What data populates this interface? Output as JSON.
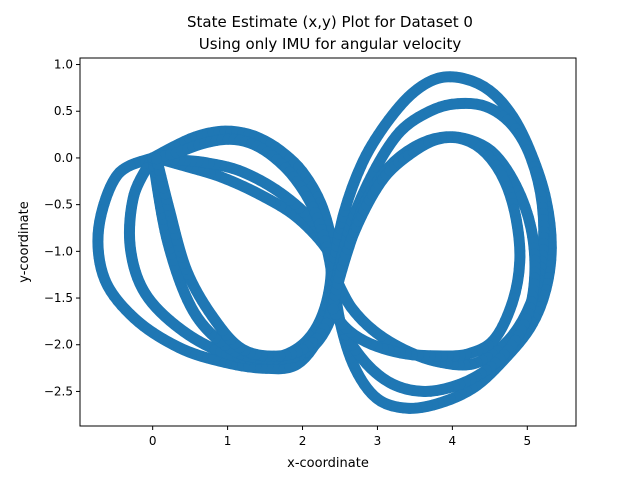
{
  "chart_data": {
    "type": "scatter",
    "title": "State Estimate (x,y) Plot for Dataset 0",
    "subtitle": "Using only IMU for angular velocity",
    "xlabel": "x-coordinate",
    "ylabel": "y-coordinate",
    "xlim": [
      -0.97,
      5.65
    ],
    "ylim": [
      -2.87,
      1.07
    ],
    "xticks": [
      0,
      1,
      2,
      3,
      4,
      5
    ],
    "yticks": [
      1.0,
      0.5,
      0.0,
      -0.5,
      -1.0,
      -1.5,
      -2.0,
      -2.5
    ],
    "xtick_labels": [
      "0",
      "1",
      "2",
      "3",
      "4",
      "5"
    ],
    "ytick_labels": [
      "1.0",
      "0.5",
      "0.0",
      "−0.5",
      "−1.0",
      "−1.5",
      "−2.0",
      "−2.5"
    ],
    "grid": false,
    "color": "#1f77b4",
    "series": [
      {
        "loops": [
          {
            "x": [
              0.0,
              -0.47,
              -0.72,
              -0.64,
              -0.24,
              0.35,
              0.92,
              1.45,
              1.9,
              2.2,
              2.38,
              2.42,
              2.3,
              1.9,
              1.4,
              0.9,
              0.4,
              0.05
            ],
            "y": [
              0.0,
              -0.18,
              -0.75,
              -1.3,
              -1.72,
              -2.03,
              -2.18,
              -2.25,
              -2.22,
              -1.95,
              -1.55,
              -1.2,
              -0.95,
              -0.62,
              -0.38,
              -0.2,
              -0.08,
              0.0
            ]
          },
          {
            "x": [
              0.0,
              -0.25,
              -0.3,
              -0.1,
              0.4,
              1.0,
              1.55,
              2.0,
              2.28,
              2.38,
              2.2,
              1.75,
              1.2,
              0.7,
              0.3,
              0.05
            ],
            "y": [
              0.0,
              -0.4,
              -0.95,
              -1.45,
              -1.85,
              -2.1,
              -2.15,
              -2.0,
              -1.65,
              -1.15,
              -0.75,
              -0.4,
              -0.15,
              -0.05,
              -0.02,
              0.0
            ]
          },
          {
            "x": [
              0.0,
              0.28,
              0.55,
              0.85,
              1.12,
              1.4,
              1.7,
              2.0,
              2.25,
              2.4,
              2.45,
              2.3,
              2.0,
              1.55,
              1.05,
              0.55,
              0.2,
              0.0
            ],
            "y": [
              0.0,
              0.12,
              0.22,
              0.28,
              0.28,
              0.22,
              0.08,
              -0.15,
              -0.5,
              -0.95,
              -1.45,
              -1.85,
              -2.1,
              -2.15,
              -2.05,
              -1.65,
              -0.9,
              0.0
            ]
          },
          {
            "x": [
              0.0,
              0.3,
              0.65,
              1.0,
              1.3,
              1.6,
              1.9,
              2.15,
              2.32,
              2.4,
              2.35,
              2.1,
              1.7,
              1.2,
              0.8,
              0.45,
              0.22,
              0.05
            ],
            "y": [
              0.0,
              0.05,
              0.15,
              0.2,
              0.16,
              0.02,
              -0.22,
              -0.55,
              -0.95,
              -1.35,
              -1.72,
              -2.0,
              -2.12,
              -2.05,
              -1.7,
              -1.2,
              -0.55,
              0.0
            ]
          },
          {
            "x": [
              2.4,
              2.55,
              2.8,
              3.1,
              3.45,
              3.8,
              4.15,
              4.5,
              4.8,
              5.05,
              5.25,
              5.32,
              5.25,
              5.05,
              4.7,
              4.3,
              3.85,
              3.4,
              3.0,
              2.7,
              2.5,
              2.4
            ],
            "y": [
              -1.2,
              -0.6,
              -0.05,
              0.35,
              0.68,
              0.85,
              0.85,
              0.72,
              0.45,
              0.05,
              -0.45,
              -0.95,
              -1.4,
              -1.8,
              -2.15,
              -2.45,
              -2.62,
              -2.68,
              -2.58,
              -2.25,
              -1.75,
              -1.2
            ]
          },
          {
            "x": [
              2.45,
              2.65,
              2.95,
              3.3,
              3.7,
              4.05,
              4.45,
              4.8,
              5.05,
              5.2,
              5.2,
              5.05,
              4.75,
              4.3,
              3.8,
              3.35,
              2.95,
              2.65,
              2.45
            ],
            "y": [
              -1.3,
              -0.7,
              -0.15,
              0.28,
              0.5,
              0.58,
              0.55,
              0.35,
              0.0,
              -0.5,
              -1.05,
              -1.55,
              -1.95,
              -2.2,
              -2.18,
              -2.05,
              -1.85,
              -1.6,
              -1.3
            ]
          },
          {
            "x": [
              2.42,
              2.6,
              2.85,
              3.15,
              3.5,
              3.85,
              4.2,
              4.55,
              4.85,
              5.05,
              5.1,
              5.0,
              4.75,
              4.4,
              4.0,
              3.6,
              3.2,
              2.85,
              2.55,
              2.42
            ],
            "y": [
              -1.5,
              -1.0,
              -0.45,
              -0.1,
              0.12,
              0.22,
              0.2,
              0.05,
              -0.3,
              -0.75,
              -1.25,
              -1.7,
              -2.05,
              -2.3,
              -2.45,
              -2.5,
              -2.42,
              -2.2,
              -1.85,
              -1.5
            ]
          },
          {
            "x": [
              2.4,
              2.55,
              2.8,
              3.1,
              3.45,
              3.8,
              4.15,
              4.45,
              4.7,
              4.85,
              4.9,
              4.8,
              4.55,
              4.2,
              3.8,
              3.4,
              3.0,
              2.7,
              2.5,
              2.4
            ],
            "y": [
              -1.6,
              -1.1,
              -0.6,
              -0.2,
              0.05,
              0.2,
              0.2,
              0.05,
              -0.25,
              -0.65,
              -1.1,
              -1.55,
              -1.95,
              -2.1,
              -2.12,
              -2.1,
              -2.02,
              -1.9,
              -1.75,
              -1.6
            ]
          }
        ]
      }
    ]
  }
}
